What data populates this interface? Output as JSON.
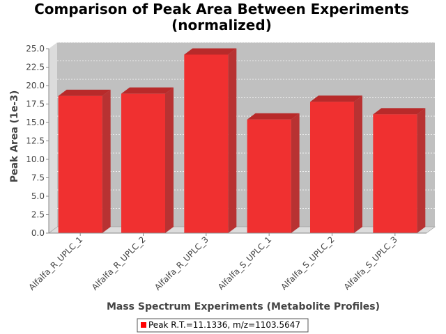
{
  "chart_data": {
    "type": "bar",
    "title_line1": "Comparison of Peak Area Between Experiments",
    "title_line2": "(normalized)",
    "xlabel": "Mass Spectrum Experiments (Metabolite Profiles)",
    "ylabel": "Peak Area (1e-3)",
    "ylim": [
      0,
      25
    ],
    "yticks": [
      "0.0",
      "2.5",
      "5.0",
      "7.5",
      "10.0",
      "12.5",
      "15.0",
      "17.5",
      "20.0",
      "22.5",
      "25.0"
    ],
    "categories": [
      "Alfalfa_R_UPLC_1",
      "Alfalfa_R_UPLC_2",
      "Alfalfa_R_UPLC_3",
      "Alfalfa_S_UPLC_1",
      "Alfalfa_S_UPLC_2",
      "Alfalfa_S_UPLC_3"
    ],
    "series": [
      {
        "name": "Peak R.T.=11.1336, m/z=1103.5647",
        "values": [
          18.6,
          18.9,
          24.2,
          15.4,
          17.8,
          16.1
        ]
      }
    ],
    "grid": true,
    "legend_position": "bottom",
    "colors": {
      "bar_front": "#f03030",
      "bar_top": "#b82a2a",
      "bar_side": "#b83232",
      "plot_back": "#c0c0c0",
      "plot_side": "#dcdcdc",
      "legend_swatch": "#ff0000"
    }
  }
}
